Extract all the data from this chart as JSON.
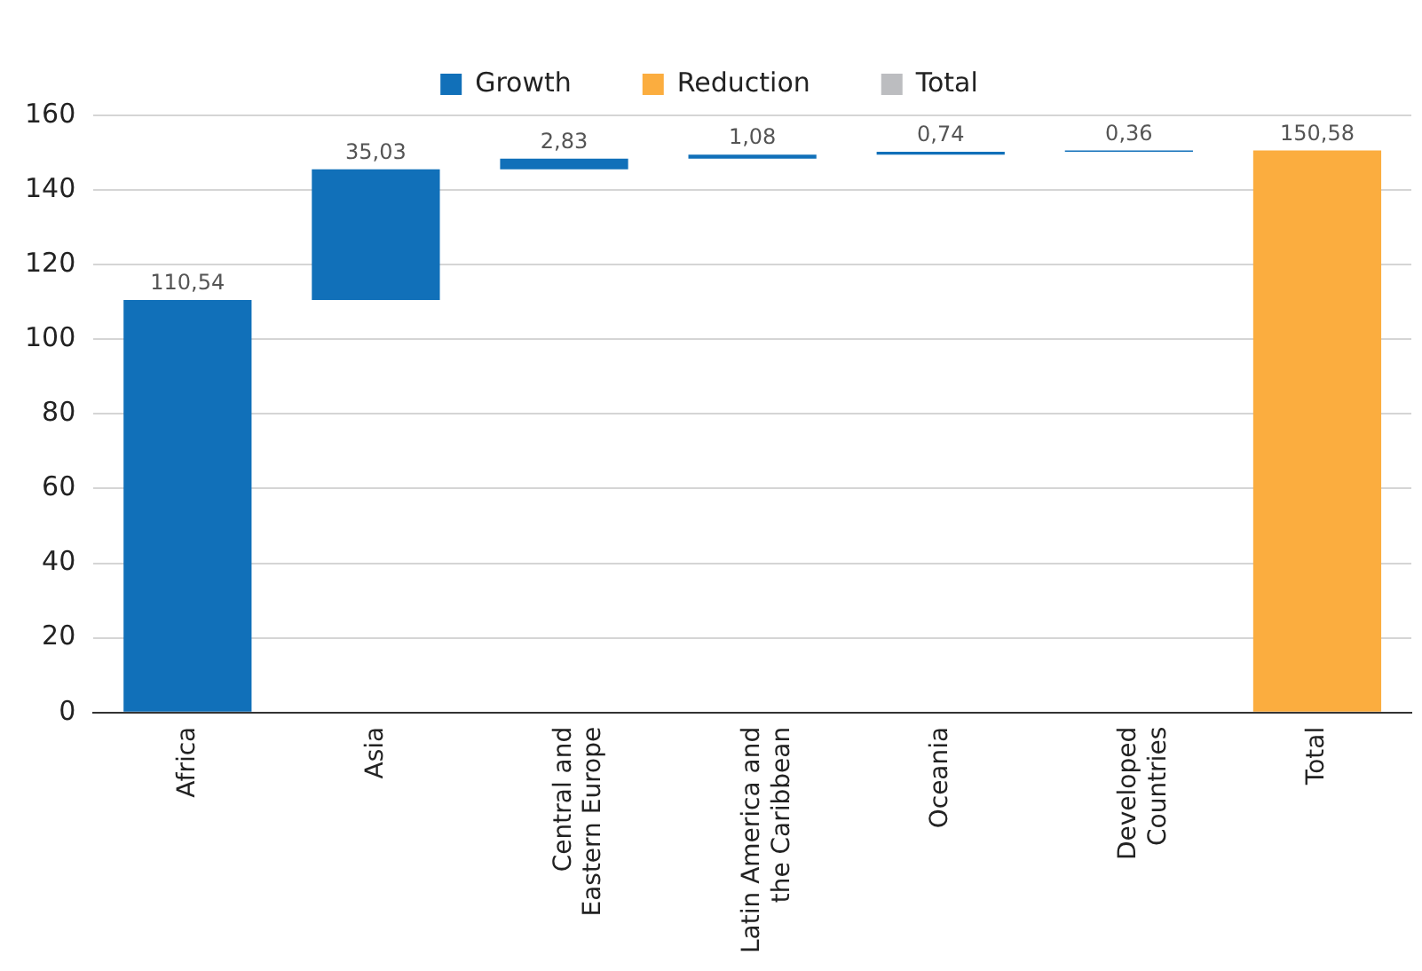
{
  "chart_data": {
    "type": "bar",
    "categories": [
      "Africa",
      "Asia",
      "Central and Eastern Europe",
      "Latin America and the Caribbean",
      "Oceania",
      "Developed Countries",
      "Total"
    ],
    "series": [
      {
        "name": "Growth",
        "color": "#1170b9",
        "base": [
          0,
          110.54,
          145.57,
          148.4,
          149.48,
          150.22,
          null
        ],
        "values": [
          110.54,
          35.03,
          2.83,
          1.08,
          0.74,
          0.36,
          null
        ],
        "value_labels": [
          "110,54",
          "35,03",
          "2,83",
          "1,08",
          "0,74",
          "0,36",
          null
        ]
      },
      {
        "name": "Reduction",
        "color": "#fbad3f",
        "base": [
          null,
          null,
          null,
          null,
          null,
          null,
          0
        ],
        "values": [
          null,
          null,
          null,
          null,
          null,
          null,
          150.58
        ],
        "value_labels": [
          null,
          null,
          null,
          null,
          null,
          null,
          "150,58"
        ]
      },
      {
        "name": "Total",
        "color": "#bcbdc0",
        "values": [
          null,
          null,
          null,
          null,
          null,
          null,
          null
        ]
      }
    ],
    "ylim": [
      0,
      160
    ],
    "yticks": [
      0,
      20,
      40,
      60,
      80,
      100,
      120,
      140,
      160
    ],
    "grid": "y",
    "legend": "top"
  }
}
